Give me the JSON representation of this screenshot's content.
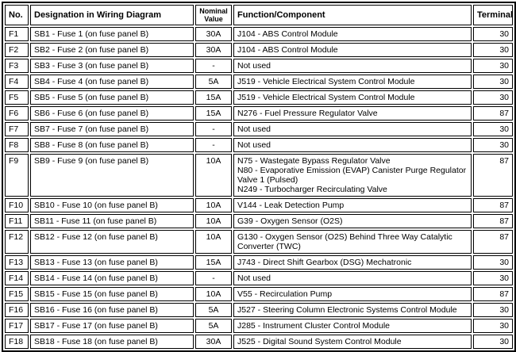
{
  "colors": {
    "border": "#000000",
    "background": "#ffffff",
    "text": "#000000"
  },
  "table": {
    "headers": {
      "no": "No.",
      "designation": "Designation in Wiring Diagram",
      "nominal_value": "Nominal\nValue",
      "function": "Function/Component",
      "terminal": "Terminal"
    },
    "rows": [
      {
        "no": "F1",
        "designation": "SB1 - Fuse 1 (on fuse panel B)",
        "value": "30A",
        "function": "J104 - ABS Control Module",
        "terminal": "30"
      },
      {
        "no": "F2",
        "designation": "SB2 - Fuse 2 (on fuse panel B)",
        "value": "30A",
        "function": "J104 - ABS Control Module",
        "terminal": "30"
      },
      {
        "no": "F3",
        "designation": "SB3 - Fuse 3 (on fuse panel B)",
        "value": "-",
        "function": "Not used",
        "terminal": "30"
      },
      {
        "no": "F4",
        "designation": "SB4 - Fuse 4 (on fuse panel B)",
        "value": "5A",
        "function": "J519 - Vehicle Electrical System Control Module",
        "terminal": "30"
      },
      {
        "no": "F5",
        "designation": "SB5 - Fuse 5 (on fuse panel B)",
        "value": "15A",
        "function": "J519 - Vehicle Electrical System Control Module",
        "terminal": "30"
      },
      {
        "no": "F6",
        "designation": "SB6 - Fuse 6 (on fuse panel B)",
        "value": "15A",
        "function": "N276 - Fuel Pressure Regulator Valve",
        "terminal": "87"
      },
      {
        "no": "F7",
        "designation": "SB7 - Fuse 7 (on fuse panel B)",
        "value": "-",
        "function": "Not used",
        "terminal": "30"
      },
      {
        "no": "F8",
        "designation": "SB8 - Fuse 8 (on fuse panel B)",
        "value": "-",
        "function": "Not used",
        "terminal": "30"
      },
      {
        "no": "F9",
        "designation": "SB9 - Fuse 9 (on fuse panel B)",
        "value": "10A",
        "function": "N75 - Wastegate Bypass Regulator Valve\nN80 - Evaporative Emission (EVAP) Canister Purge Regulator Valve 1 (Pulsed)\nN249 - Turbocharger Recirculating Valve",
        "terminal": "87"
      },
      {
        "no": "F10",
        "designation": "SB10 - Fuse 10 (on fuse panel B)",
        "value": "10A",
        "function": "V144 - Leak Detection Pump",
        "terminal": "87"
      },
      {
        "no": "F11",
        "designation": "SB11 - Fuse 11 (on fuse panel B)",
        "value": "10A",
        "function": "G39 - Oxygen Sensor (O2S)",
        "terminal": "87"
      },
      {
        "no": "F12",
        "designation": "SB12 - Fuse 12 (on fuse panel B)",
        "value": "10A",
        "function": "G130 - Oxygen Sensor (O2S) Behind Three Way Catalytic Converter (TWC)",
        "terminal": "87"
      },
      {
        "no": "F13",
        "designation": "SB13 - Fuse 13 (on fuse panel B)",
        "value": "15A",
        "function": "J743 - Direct Shift Gearbox (DSG) Mechatronic",
        "terminal": "30"
      },
      {
        "no": "F14",
        "designation": "SB14 - Fuse 14 (on fuse panel B)",
        "value": "-",
        "function": "Not used",
        "terminal": "30"
      },
      {
        "no": "F15",
        "designation": "SB15 - Fuse 15 (on fuse panel B)",
        "value": "10A",
        "function": "V55 - Recirculation Pump",
        "terminal": "87"
      },
      {
        "no": "F16",
        "designation": "SB16 - Fuse 16 (on fuse panel B)",
        "value": "5A",
        "function": "J527 - Steering Column Electronic Systems Control Module",
        "terminal": "30"
      },
      {
        "no": "F17",
        "designation": "SB17 - Fuse 17 (on fuse panel B)",
        "value": "5A",
        "function": "J285 - Instrument Cluster Control Module",
        "terminal": "30"
      },
      {
        "no": "F18",
        "designation": "SB18 - Fuse 18 (on fuse panel B)",
        "value": "30A",
        "function": "J525 - Digital Sound System Control Module",
        "terminal": "30"
      }
    ]
  }
}
